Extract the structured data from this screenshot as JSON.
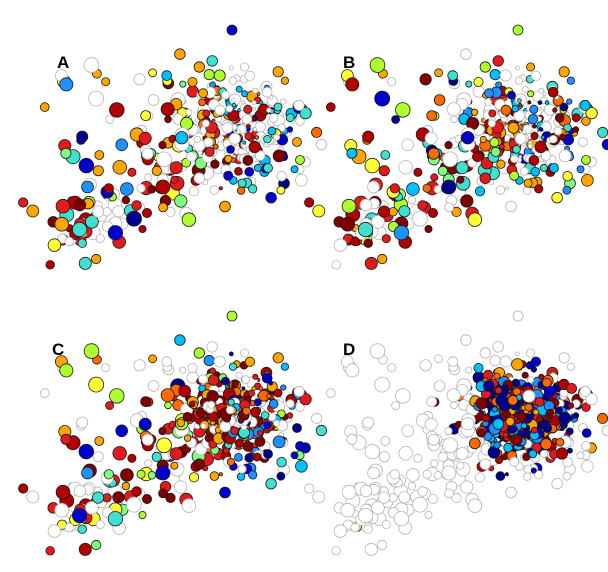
{
  "figure": {
    "panels": [
      {
        "label": "A",
        "variant": "A"
      },
      {
        "label": "B",
        "variant": "B"
      },
      {
        "label": "C",
        "variant": "C"
      },
      {
        "label": "D",
        "variant": "D"
      }
    ],
    "colors": {
      "empty_stroke": "#b4b4b4",
      "marker_stroke": "#1a1a1a",
      "palette": [
        "#00008b",
        "#0000cd",
        "#1e90ff",
        "#00bfff",
        "#40e0d0",
        "#7fff7f",
        "#adff2f",
        "#ffff33",
        "#ffa500",
        "#ff6a00",
        "#e31a1c",
        "#b00000",
        "#800000"
      ]
    }
  }
}
